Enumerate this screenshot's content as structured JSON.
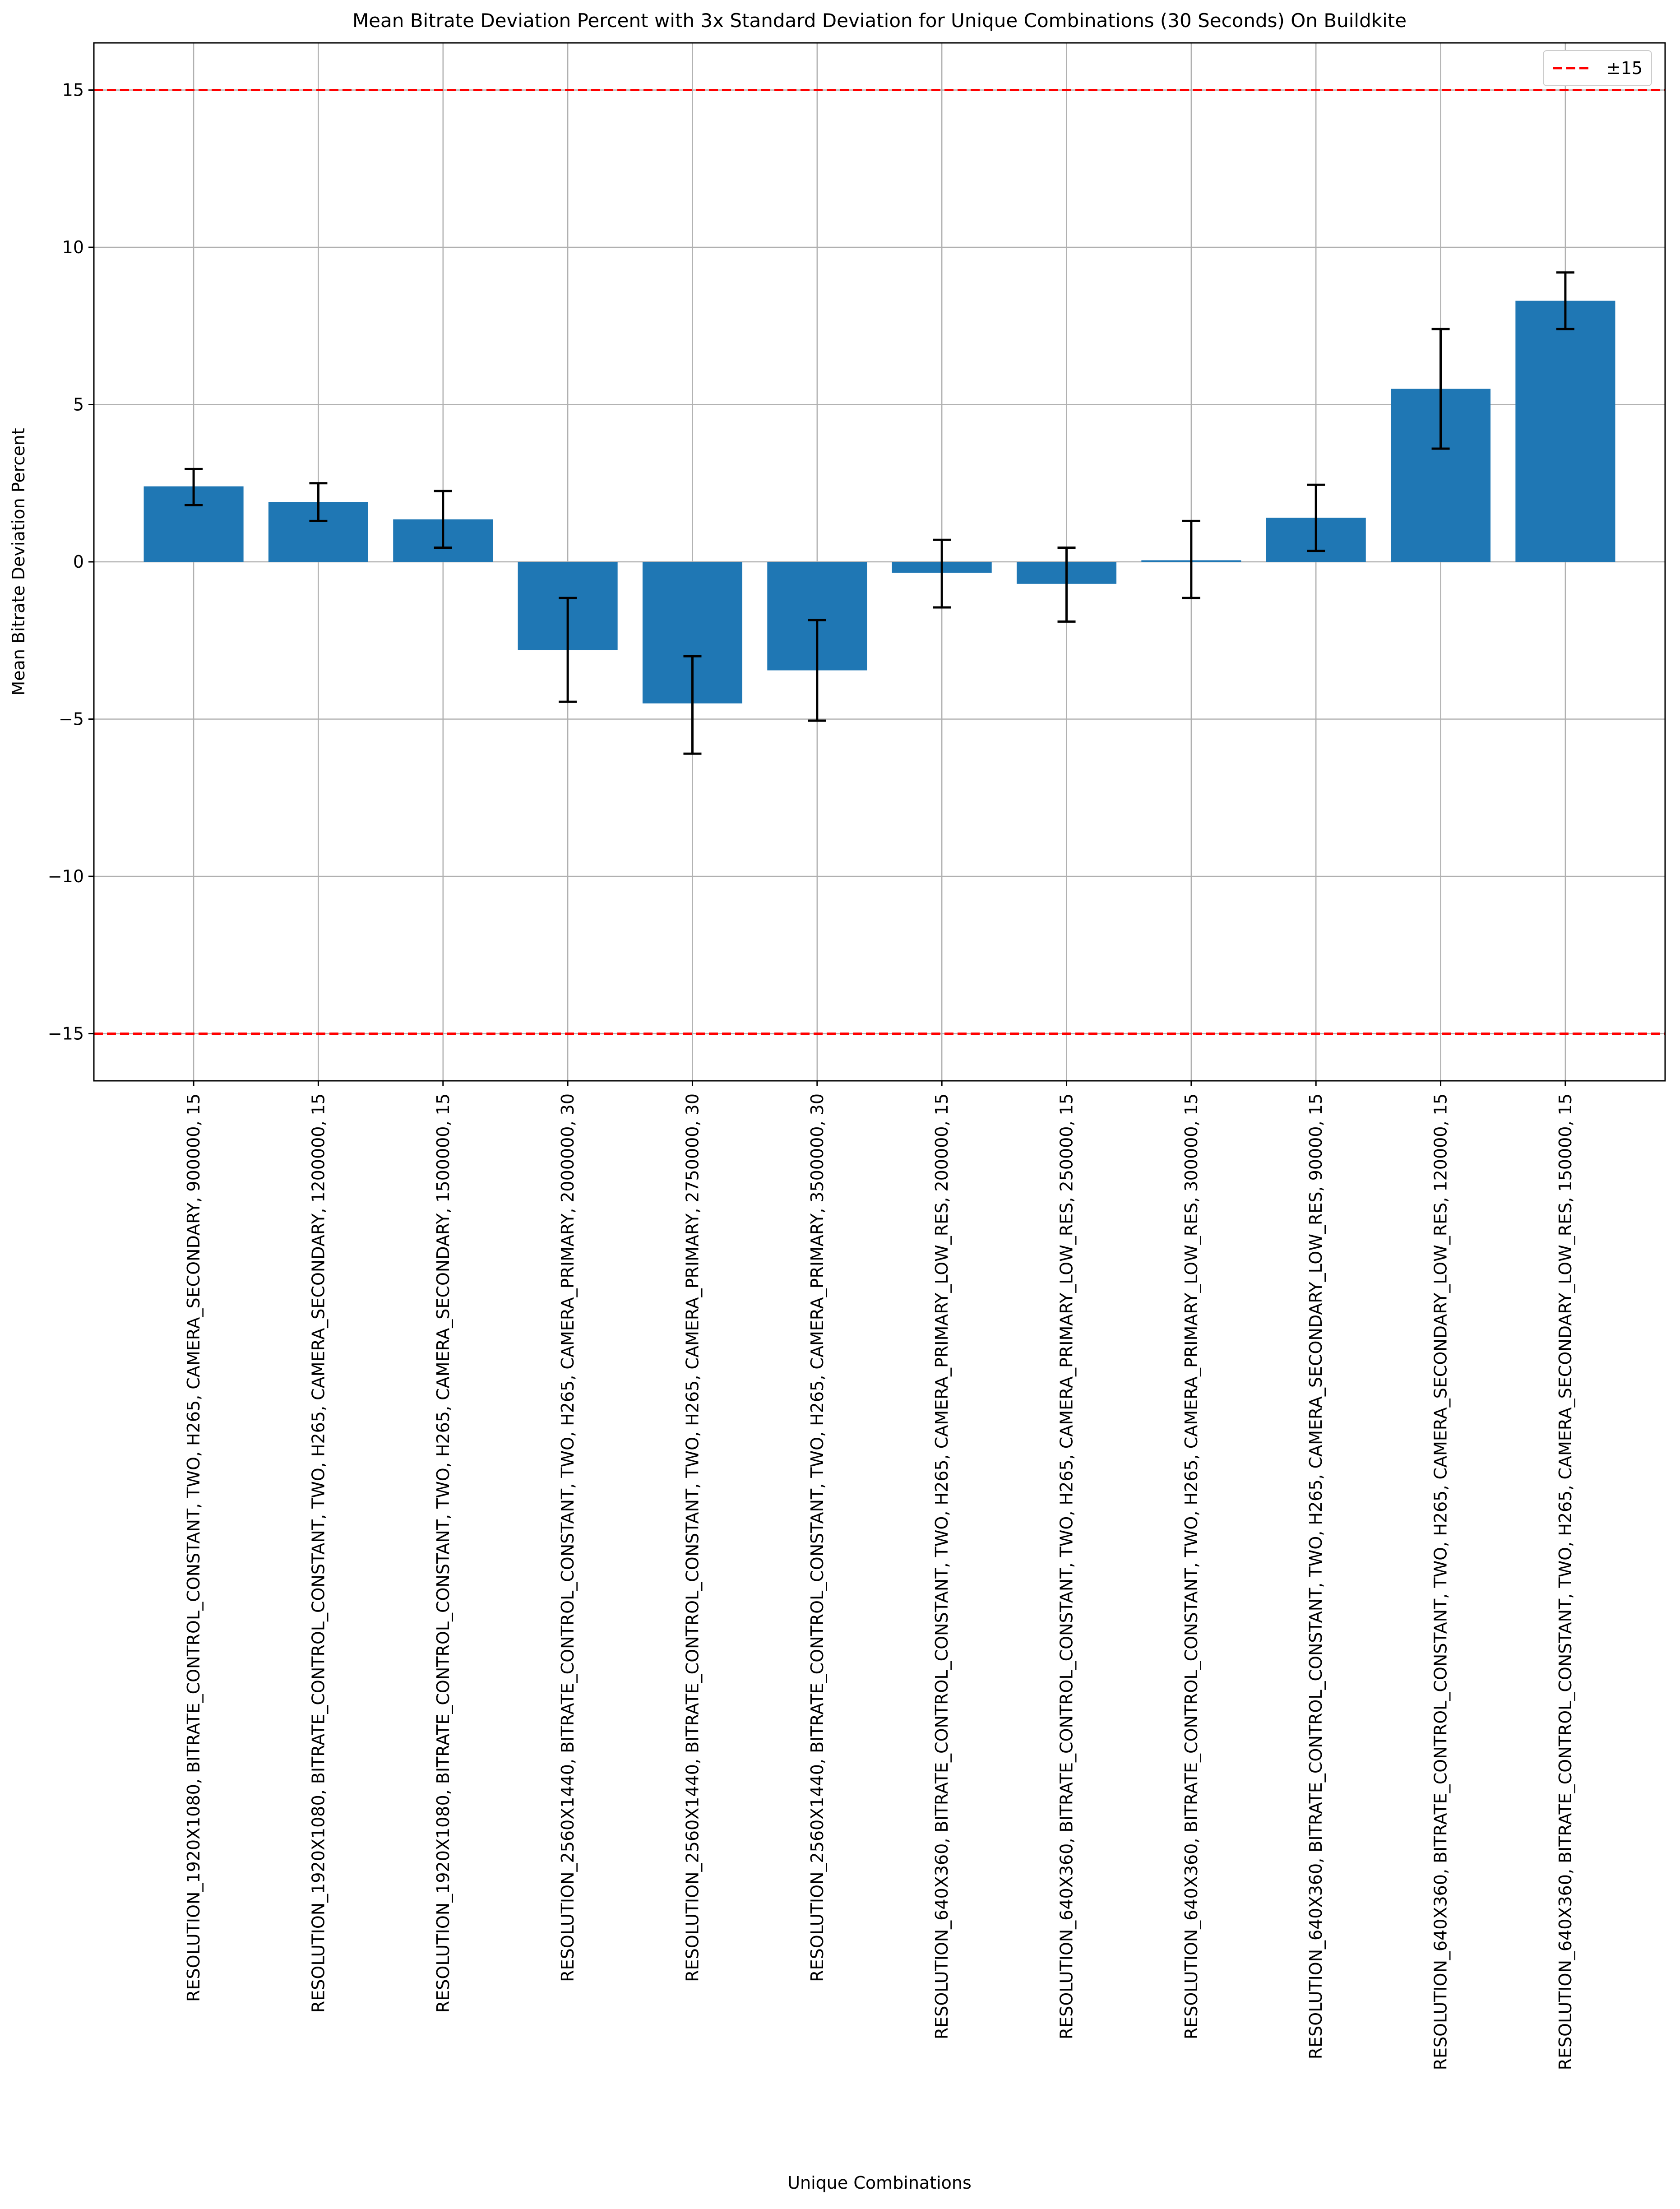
{
  "chart_data": {
    "type": "bar",
    "title": "Mean Bitrate Deviation Percent with 3x Standard Deviation for Unique Combinations (30 Seconds) On Buildkite",
    "xlabel": "Unique Combinations",
    "ylabel": "Mean Bitrate Deviation Percent",
    "ylim": [
      -16.5,
      16.5
    ],
    "yticks": [
      -15,
      -10,
      -5,
      0,
      5,
      10,
      15
    ],
    "ytick_labels": [
      "−15",
      "−10",
      "−5",
      "0",
      "5",
      "10",
      "15"
    ],
    "grid": true,
    "legend_position": "top-right",
    "categories": [
      "RESOLUTION_1920X1080, BITRATE_CONTROL_CONSTANT, TWO, H265, CAMERA_SECONDARY, 900000, 15",
      "RESOLUTION_1920X1080, BITRATE_CONTROL_CONSTANT, TWO, H265, CAMERA_SECONDARY, 1200000, 15",
      "RESOLUTION_1920X1080, BITRATE_CONTROL_CONSTANT, TWO, H265, CAMERA_SECONDARY, 1500000, 15",
      "RESOLUTION_2560X1440, BITRATE_CONTROL_CONSTANT, TWO, H265, CAMERA_PRIMARY, 2000000, 30",
      "RESOLUTION_2560X1440, BITRATE_CONTROL_CONSTANT, TWO, H265, CAMERA_PRIMARY, 2750000, 30",
      "RESOLUTION_2560X1440, BITRATE_CONTROL_CONSTANT, TWO, H265, CAMERA_PRIMARY, 3500000, 30",
      "RESOLUTION_640X360, BITRATE_CONTROL_CONSTANT, TWO, H265, CAMERA_PRIMARY_LOW_RES, 200000, 15",
      "RESOLUTION_640X360, BITRATE_CONTROL_CONSTANT, TWO, H265, CAMERA_PRIMARY_LOW_RES, 250000, 15",
      "RESOLUTION_640X360, BITRATE_CONTROL_CONSTANT, TWO, H265, CAMERA_PRIMARY_LOW_RES, 300000, 15",
      "RESOLUTION_640X360, BITRATE_CONTROL_CONSTANT, TWO, H265, CAMERA_SECONDARY_LOW_RES, 90000, 15",
      "RESOLUTION_640X360, BITRATE_CONTROL_CONSTANT, TWO, H265, CAMERA_SECONDARY_LOW_RES, 120000, 15",
      "RESOLUTION_640X360, BITRATE_CONTROL_CONSTANT, TWO, H265, CAMERA_SECONDARY_LOW_RES, 150000, 15"
    ],
    "values": [
      2.4,
      1.9,
      1.35,
      -2.8,
      -4.5,
      -3.45,
      -0.35,
      -0.7,
      0.05,
      1.4,
      5.5,
      8.3
    ],
    "error_low": [
      1.8,
      1.3,
      0.45,
      -4.45,
      -6.1,
      -5.05,
      -1.45,
      -1.9,
      -1.15,
      0.35,
      3.6,
      7.4
    ],
    "error_high": [
      2.95,
      2.5,
      2.25,
      -1.15,
      -3.0,
      -1.85,
      0.7,
      0.45,
      1.3,
      2.45,
      7.4,
      9.2
    ],
    "reference_lines": [
      {
        "y": 15,
        "label": "±15"
      },
      {
        "y": -15
      }
    ],
    "legend": [
      {
        "label": "±15",
        "style": "dashed",
        "color": "#ff0000"
      }
    ],
    "colors": {
      "bar": "#1f77b4",
      "error_bar": "#000000",
      "reference_line": "#ff0000",
      "grid": "#b0b0b0"
    }
  }
}
